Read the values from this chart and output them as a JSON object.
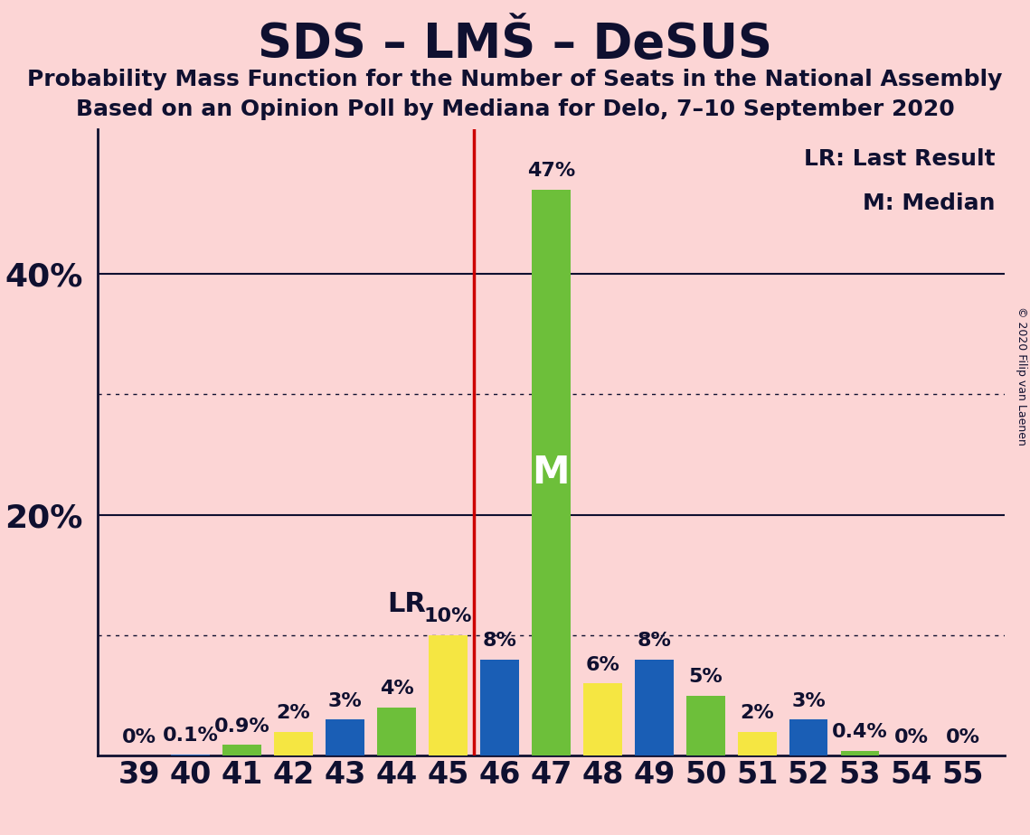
{
  "title": "SDS – LMŠ – DeSUS",
  "subtitle1": "Probability Mass Function for the Number of Seats in the National Assembly",
  "subtitle2": "Based on an Opinion Poll by Mediana for Delo, 7–10 September 2020",
  "copyright": "© 2020 Filip van Laenen",
  "lr_label": "LR: Last Result",
  "median_label": "M: Median",
  "lr_value": 45.5,
  "median_value": 47,
  "seats": [
    39,
    40,
    41,
    42,
    43,
    44,
    45,
    46,
    47,
    48,
    49,
    50,
    51,
    52,
    53,
    54,
    55
  ],
  "probabilities": [
    0.0,
    0.1,
    0.9,
    2.0,
    3.0,
    4.0,
    10.0,
    8.0,
    47.0,
    6.0,
    8.0,
    5.0,
    2.0,
    3.0,
    0.4,
    0.0,
    0.0
  ],
  "prob_labels": [
    "0%",
    "0.1%",
    "0.9%",
    "2%",
    "3%",
    "4%",
    "10%",
    "8%",
    "47%",
    "6%",
    "8%",
    "5%",
    "2%",
    "3%",
    "0.4%",
    "0%",
    "0%"
  ],
  "bar_colors": [
    "#f5e642",
    "#1a5eb5",
    "#6dbf3a",
    "#f5e642",
    "#1a5eb5",
    "#6dbf3a",
    "#f5e642",
    "#1a5eb5",
    "#6dbf3a",
    "#f5e642",
    "#1a5eb5",
    "#6dbf3a",
    "#f5e642",
    "#1a5eb5",
    "#6dbf3a",
    "#f5e642",
    "#1a5eb5"
  ],
  "background_color": "#fcd5d5",
  "ylim": [
    0,
    52
  ],
  "solid_gridlines": [
    20,
    40
  ],
  "dotted_gridlines": [
    10,
    30
  ],
  "title_fontsize": 38,
  "subtitle_fontsize": 18,
  "tick_fontsize": 24,
  "bar_label_fontsize": 16,
  "ytick_fontsize": 26,
  "lr_text_fontsize": 22,
  "legend_fontsize": 18,
  "axis_label_color": "#0f1030",
  "grid_color": "#0f1030",
  "lr_line_color": "#cc0000",
  "median_text_color": "#ffffff",
  "median_text_fontsize": 30,
  "copyright_fontsize": 9
}
